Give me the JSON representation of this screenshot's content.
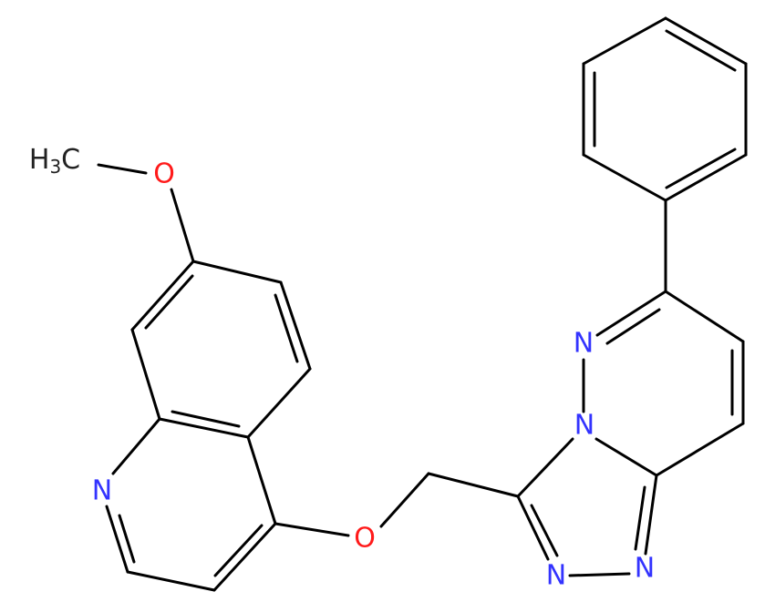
{
  "atoms": {
    "methyl": {
      "h": "H",
      "subscript": "3",
      "c": "C"
    },
    "methoxy_oxygen": "O",
    "quinoline_nitrogen": "N",
    "ether_oxygen": "O",
    "bridgehead_nitrogen": "N",
    "pyridazine_nitrogen": "N",
    "triazole_nitrogen_1": "N",
    "triazole_nitrogen_2": "N"
  }
}
